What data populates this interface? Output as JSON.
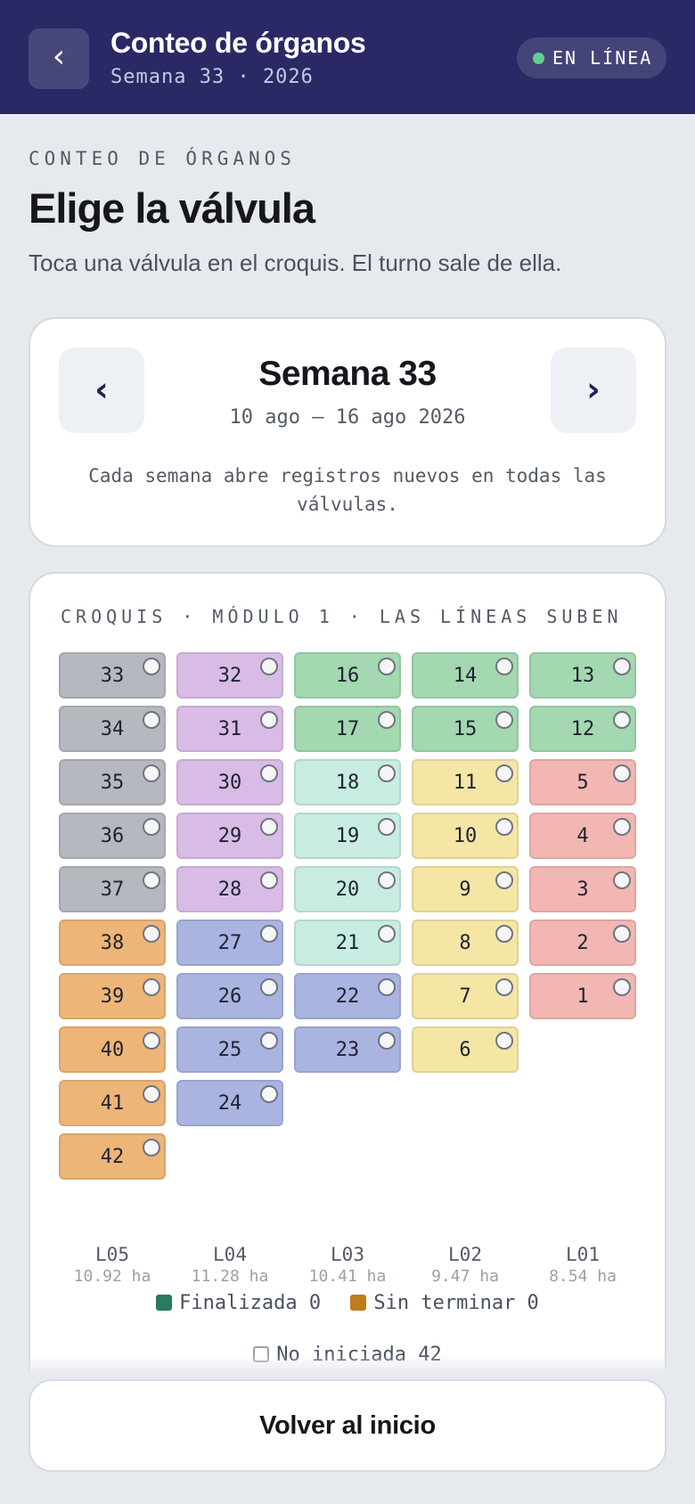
{
  "header": {
    "back_glyph": "‹",
    "title": "Conteo de órganos",
    "subtitle": "Semana 33 · 2026",
    "status_label": "EN LÍNEA",
    "status_color": "#63d08f"
  },
  "intro": {
    "eyebrow": "CONTEO DE ÓRGANOS",
    "heading": "Elige la válvula",
    "lead": "Toca una válvula en el croquis. El turno sale de ella."
  },
  "week": {
    "prev_glyph": "‹",
    "next_glyph": "›",
    "title": "Semana 33",
    "range": "10 ago – 16 ago 2026",
    "note": "Cada semana abre registros nuevos en todas las válvulas."
  },
  "map": {
    "heading": "CROQUIS · MÓDULO 1 · LAS LÍNEAS SUBEN",
    "group_colors": {
      "gray": "#b5b8bf",
      "purple": "#d8bce6",
      "green": "#a3d8b1",
      "mint": "#c8ece1",
      "yellow": "#f5e6a6",
      "red": "#f2b7b3",
      "orange": "#edb577",
      "blue": "#aab4e0"
    },
    "columns": [
      {
        "id": "L05",
        "area": "10.92 ha",
        "valves": [
          {
            "n": "33",
            "g": "gray"
          },
          {
            "n": "34",
            "g": "gray"
          },
          {
            "n": "35",
            "g": "gray"
          },
          {
            "n": "36",
            "g": "gray"
          },
          {
            "n": "37",
            "g": "gray"
          },
          {
            "n": "38",
            "g": "orange"
          },
          {
            "n": "39",
            "g": "orange"
          },
          {
            "n": "40",
            "g": "orange"
          },
          {
            "n": "41",
            "g": "orange"
          },
          {
            "n": "42",
            "g": "orange"
          }
        ]
      },
      {
        "id": "L04",
        "area": "11.28 ha",
        "valves": [
          {
            "n": "32",
            "g": "purple"
          },
          {
            "n": "31",
            "g": "purple"
          },
          {
            "n": "30",
            "g": "purple"
          },
          {
            "n": "29",
            "g": "purple"
          },
          {
            "n": "28",
            "g": "purple"
          },
          {
            "n": "27",
            "g": "blue"
          },
          {
            "n": "26",
            "g": "blue"
          },
          {
            "n": "25",
            "g": "blue"
          },
          {
            "n": "24",
            "g": "blue"
          }
        ]
      },
      {
        "id": "L03",
        "area": "10.41 ha",
        "valves": [
          {
            "n": "16",
            "g": "green"
          },
          {
            "n": "17",
            "g": "green"
          },
          {
            "n": "18",
            "g": "mint"
          },
          {
            "n": "19",
            "g": "mint"
          },
          {
            "n": "20",
            "g": "mint"
          },
          {
            "n": "21",
            "g": "mint"
          },
          {
            "n": "22",
            "g": "blue"
          },
          {
            "n": "23",
            "g": "blue"
          }
        ]
      },
      {
        "id": "L02",
        "area": "9.47 ha",
        "valves": [
          {
            "n": "14",
            "g": "green"
          },
          {
            "n": "15",
            "g": "green"
          },
          {
            "n": "11",
            "g": "yellow"
          },
          {
            "n": "10",
            "g": "yellow"
          },
          {
            "n": "9",
            "g": "yellow"
          },
          {
            "n": "8",
            "g": "yellow"
          },
          {
            "n": "7",
            "g": "yellow"
          },
          {
            "n": "6",
            "g": "yellow"
          }
        ]
      },
      {
        "id": "L01",
        "area": "8.54 ha",
        "valves": [
          {
            "n": "13",
            "g": "green"
          },
          {
            "n": "12",
            "g": "green"
          },
          {
            "n": "5",
            "g": "red"
          },
          {
            "n": "4",
            "g": "red"
          },
          {
            "n": "3",
            "g": "red"
          },
          {
            "n": "2",
            "g": "red"
          },
          {
            "n": "1",
            "g": "red"
          }
        ]
      }
    ]
  },
  "legend": {
    "done": "Finalizada 0",
    "partial": "Sin terminar 0",
    "none": "No iniciada 42",
    "done_color": "#2a7a5c",
    "partial_color": "#c07c1a"
  },
  "footer": {
    "home_label": "Volver al inicio"
  }
}
